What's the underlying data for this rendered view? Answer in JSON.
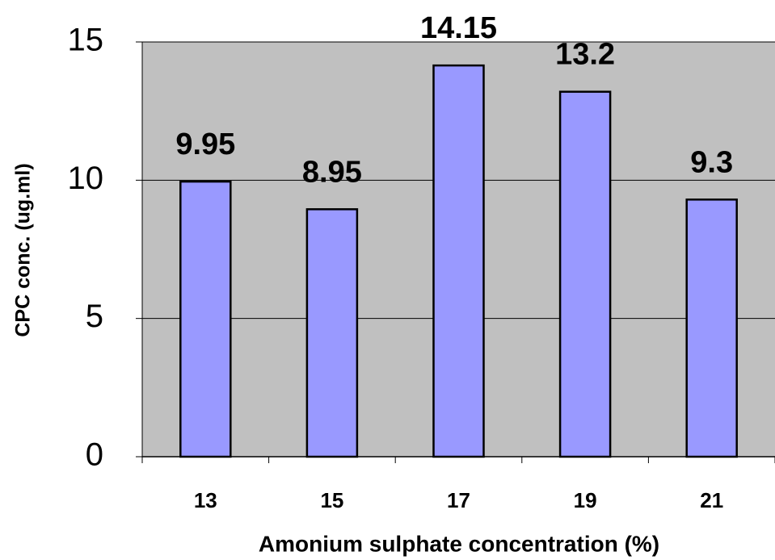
{
  "chart_data": {
    "type": "bar",
    "x_label": "Amonium sulphate concentration (%)",
    "y_label": "CPC conc. (ug.ml)",
    "categories": [
      "13",
      "15",
      "17",
      "19",
      "21"
    ],
    "values": [
      9.95,
      8.95,
      14.15,
      13.2,
      9.3
    ],
    "color": "#9999ff",
    "ylim": [
      0,
      15
    ],
    "yticks": [
      0,
      5,
      10,
      15
    ],
    "grid": true
  }
}
